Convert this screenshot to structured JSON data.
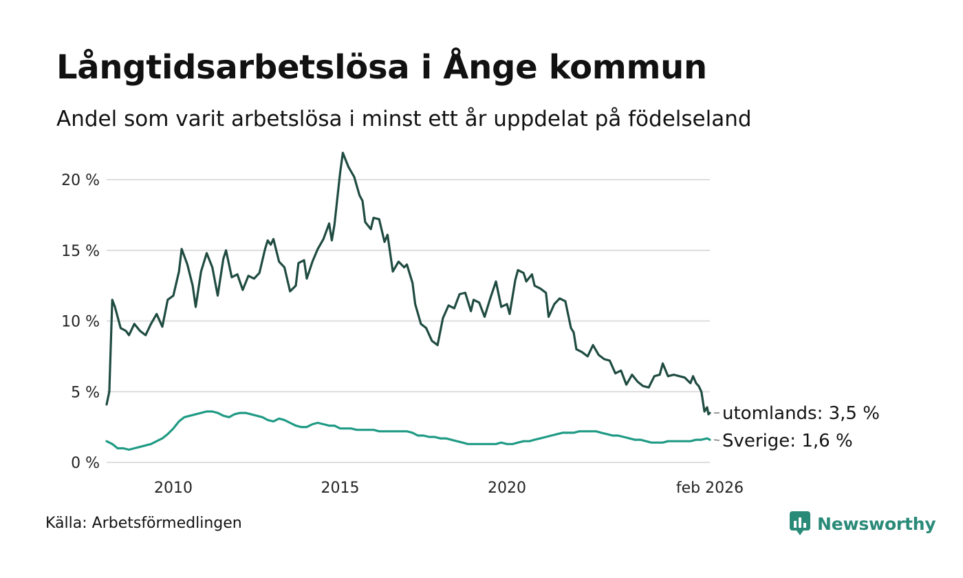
{
  "title": "Långtidsarbetslösa i Ånge kommun",
  "subtitle": "Andel som varit arbetslösa i minst ett år uppdelat på födelseland",
  "source": "Källa: Arbetsförmedlingen",
  "brand": {
    "name": "Newsworthy",
    "icon": "newsworthy-logo-icon",
    "color": "#2a8a78"
  },
  "chart_data": {
    "type": "line",
    "title": "Långtidsarbetslösa i Ånge kommun",
    "xlabel": "",
    "ylabel": "",
    "x_range": [
      2008.0,
      2026.083
    ],
    "ylim": [
      0,
      22
    ],
    "y_ticks": [
      0,
      5,
      10,
      15,
      20
    ],
    "y_tick_labels": [
      "0 %",
      "5 %",
      "10 %",
      "15 %",
      "20 %"
    ],
    "x_ticks": [
      2010,
      2015,
      2020,
      2026.083
    ],
    "x_tick_labels": [
      "2010",
      "2015",
      "2020",
      "feb 2026"
    ],
    "grid": true,
    "series": [
      {
        "name": "utomlands",
        "end_label": "utomlands: 3,5 %",
        "color": "#1f4b40",
        "points": [
          [
            2008.0,
            4.1
          ],
          [
            2008.08,
            5.0
          ],
          [
            2008.17,
            11.5
          ],
          [
            2008.25,
            11.0
          ],
          [
            2008.42,
            9.5
          ],
          [
            2008.58,
            9.3
          ],
          [
            2008.67,
            9.0
          ],
          [
            2008.83,
            9.8
          ],
          [
            2009.0,
            9.3
          ],
          [
            2009.17,
            9.0
          ],
          [
            2009.33,
            9.8
          ],
          [
            2009.5,
            10.5
          ],
          [
            2009.67,
            9.6
          ],
          [
            2009.83,
            11.5
          ],
          [
            2010.0,
            11.8
          ],
          [
            2010.17,
            13.5
          ],
          [
            2010.25,
            15.1
          ],
          [
            2010.42,
            14.0
          ],
          [
            2010.58,
            12.5
          ],
          [
            2010.67,
            11.0
          ],
          [
            2010.83,
            13.5
          ],
          [
            2011.0,
            14.8
          ],
          [
            2011.17,
            13.8
          ],
          [
            2011.33,
            11.8
          ],
          [
            2011.5,
            14.4
          ],
          [
            2011.58,
            15.0
          ],
          [
            2011.75,
            13.1
          ],
          [
            2011.92,
            13.3
          ],
          [
            2012.08,
            12.2
          ],
          [
            2012.25,
            13.2
          ],
          [
            2012.42,
            13.0
          ],
          [
            2012.58,
            13.4
          ],
          [
            2012.75,
            15.1
          ],
          [
            2012.83,
            15.7
          ],
          [
            2012.92,
            15.4
          ],
          [
            2013.0,
            15.8
          ],
          [
            2013.17,
            14.2
          ],
          [
            2013.33,
            13.8
          ],
          [
            2013.5,
            12.1
          ],
          [
            2013.67,
            12.5
          ],
          [
            2013.75,
            14.1
          ],
          [
            2013.92,
            14.3
          ],
          [
            2014.0,
            13.0
          ],
          [
            2014.17,
            14.2
          ],
          [
            2014.33,
            15.1
          ],
          [
            2014.5,
            15.8
          ],
          [
            2014.67,
            16.9
          ],
          [
            2014.75,
            15.7
          ],
          [
            2014.83,
            16.8
          ],
          [
            2015.0,
            20.5
          ],
          [
            2015.08,
            21.9
          ],
          [
            2015.25,
            20.9
          ],
          [
            2015.42,
            20.2
          ],
          [
            2015.58,
            18.9
          ],
          [
            2015.67,
            18.5
          ],
          [
            2015.75,
            17.0
          ],
          [
            2015.92,
            16.5
          ],
          [
            2016.0,
            17.3
          ],
          [
            2016.17,
            17.2
          ],
          [
            2016.33,
            15.6
          ],
          [
            2016.42,
            16.1
          ],
          [
            2016.58,
            13.5
          ],
          [
            2016.75,
            14.2
          ],
          [
            2016.92,
            13.8
          ],
          [
            2017.0,
            14.0
          ],
          [
            2017.17,
            12.7
          ],
          [
            2017.25,
            11.2
          ],
          [
            2017.42,
            9.8
          ],
          [
            2017.58,
            9.5
          ],
          [
            2017.75,
            8.6
          ],
          [
            2017.92,
            8.3
          ],
          [
            2018.08,
            10.2
          ],
          [
            2018.25,
            11.1
          ],
          [
            2018.42,
            10.9
          ],
          [
            2018.58,
            11.9
          ],
          [
            2018.75,
            12.0
          ],
          [
            2018.92,
            10.7
          ],
          [
            2019.0,
            11.5
          ],
          [
            2019.17,
            11.3
          ],
          [
            2019.33,
            10.3
          ],
          [
            2019.5,
            11.6
          ],
          [
            2019.67,
            12.8
          ],
          [
            2019.83,
            11.0
          ],
          [
            2020.0,
            11.2
          ],
          [
            2020.08,
            10.5
          ],
          [
            2020.25,
            12.9
          ],
          [
            2020.33,
            13.6
          ],
          [
            2020.5,
            13.4
          ],
          [
            2020.58,
            12.8
          ],
          [
            2020.75,
            13.3
          ],
          [
            2020.83,
            12.5
          ],
          [
            2021.0,
            12.3
          ],
          [
            2021.17,
            12.0
          ],
          [
            2021.25,
            10.3
          ],
          [
            2021.42,
            11.2
          ],
          [
            2021.58,
            11.6
          ],
          [
            2021.75,
            11.4
          ],
          [
            2021.92,
            9.5
          ],
          [
            2022.0,
            9.2
          ],
          [
            2022.08,
            8.0
          ],
          [
            2022.25,
            7.8
          ],
          [
            2022.42,
            7.5
          ],
          [
            2022.58,
            8.3
          ],
          [
            2022.75,
            7.6
          ],
          [
            2022.92,
            7.3
          ],
          [
            2023.08,
            7.2
          ],
          [
            2023.25,
            6.3
          ],
          [
            2023.42,
            6.5
          ],
          [
            2023.58,
            5.5
          ],
          [
            2023.75,
            6.2
          ],
          [
            2023.92,
            5.7
          ],
          [
            2024.08,
            5.4
          ],
          [
            2024.25,
            5.3
          ],
          [
            2024.42,
            6.1
          ],
          [
            2024.58,
            6.2
          ],
          [
            2024.67,
            7.0
          ],
          [
            2024.83,
            6.1
          ],
          [
            2025.0,
            6.2
          ],
          [
            2025.17,
            6.1
          ],
          [
            2025.33,
            6.0
          ],
          [
            2025.5,
            5.6
          ],
          [
            2025.58,
            6.1
          ],
          [
            2025.67,
            5.6
          ],
          [
            2025.75,
            5.4
          ],
          [
            2025.83,
            5.0
          ],
          [
            2025.92,
            3.6
          ],
          [
            2026.0,
            3.9
          ],
          [
            2026.04,
            3.4
          ],
          [
            2026.083,
            3.5
          ]
        ]
      },
      {
        "name": "Sverige",
        "end_label": "Sverige: 1,6 %",
        "color": "#1f9a84",
        "points": [
          [
            2008.0,
            1.5
          ],
          [
            2008.17,
            1.3
          ],
          [
            2008.33,
            1.0
          ],
          [
            2008.5,
            1.0
          ],
          [
            2008.67,
            0.9
          ],
          [
            2008.83,
            1.0
          ],
          [
            2009.0,
            1.1
          ],
          [
            2009.17,
            1.2
          ],
          [
            2009.33,
            1.3
          ],
          [
            2009.5,
            1.5
          ],
          [
            2009.67,
            1.7
          ],
          [
            2009.83,
            2.0
          ],
          [
            2010.0,
            2.4
          ],
          [
            2010.17,
            2.9
          ],
          [
            2010.33,
            3.2
          ],
          [
            2010.5,
            3.3
          ],
          [
            2010.67,
            3.4
          ],
          [
            2010.83,
            3.5
          ],
          [
            2011.0,
            3.6
          ],
          [
            2011.17,
            3.6
          ],
          [
            2011.33,
            3.5
          ],
          [
            2011.5,
            3.3
          ],
          [
            2011.67,
            3.2
          ],
          [
            2011.83,
            3.4
          ],
          [
            2012.0,
            3.5
          ],
          [
            2012.17,
            3.5
          ],
          [
            2012.33,
            3.4
          ],
          [
            2012.5,
            3.3
          ],
          [
            2012.67,
            3.2
          ],
          [
            2012.83,
            3.0
          ],
          [
            2013.0,
            2.9
          ],
          [
            2013.17,
            3.1
          ],
          [
            2013.33,
            3.0
          ],
          [
            2013.5,
            2.8
          ],
          [
            2013.67,
            2.6
          ],
          [
            2013.83,
            2.5
          ],
          [
            2014.0,
            2.5
          ],
          [
            2014.17,
            2.7
          ],
          [
            2014.33,
            2.8
          ],
          [
            2014.5,
            2.7
          ],
          [
            2014.67,
            2.6
          ],
          [
            2014.83,
            2.6
          ],
          [
            2015.0,
            2.4
          ],
          [
            2015.17,
            2.4
          ],
          [
            2015.33,
            2.4
          ],
          [
            2015.5,
            2.3
          ],
          [
            2015.67,
            2.3
          ],
          [
            2015.83,
            2.3
          ],
          [
            2016.0,
            2.3
          ],
          [
            2016.17,
            2.2
          ],
          [
            2016.33,
            2.2
          ],
          [
            2016.5,
            2.2
          ],
          [
            2016.67,
            2.2
          ],
          [
            2016.83,
            2.2
          ],
          [
            2017.0,
            2.2
          ],
          [
            2017.17,
            2.1
          ],
          [
            2017.33,
            1.9
          ],
          [
            2017.5,
            1.9
          ],
          [
            2017.67,
            1.8
          ],
          [
            2017.83,
            1.8
          ],
          [
            2018.0,
            1.7
          ],
          [
            2018.17,
            1.7
          ],
          [
            2018.33,
            1.6
          ],
          [
            2018.5,
            1.5
          ],
          [
            2018.67,
            1.4
          ],
          [
            2018.83,
            1.3
          ],
          [
            2019.0,
            1.3
          ],
          [
            2019.17,
            1.3
          ],
          [
            2019.33,
            1.3
          ],
          [
            2019.5,
            1.3
          ],
          [
            2019.67,
            1.3
          ],
          [
            2019.83,
            1.4
          ],
          [
            2020.0,
            1.3
          ],
          [
            2020.17,
            1.3
          ],
          [
            2020.33,
            1.4
          ],
          [
            2020.5,
            1.5
          ],
          [
            2020.67,
            1.5
          ],
          [
            2020.83,
            1.6
          ],
          [
            2021.0,
            1.7
          ],
          [
            2021.17,
            1.8
          ],
          [
            2021.33,
            1.9
          ],
          [
            2021.5,
            2.0
          ],
          [
            2021.67,
            2.1
          ],
          [
            2021.83,
            2.1
          ],
          [
            2022.0,
            2.1
          ],
          [
            2022.17,
            2.2
          ],
          [
            2022.33,
            2.2
          ],
          [
            2022.5,
            2.2
          ],
          [
            2022.67,
            2.2
          ],
          [
            2022.83,
            2.1
          ],
          [
            2023.0,
            2.0
          ],
          [
            2023.17,
            1.9
          ],
          [
            2023.33,
            1.9
          ],
          [
            2023.5,
            1.8
          ],
          [
            2023.67,
            1.7
          ],
          [
            2023.83,
            1.6
          ],
          [
            2024.0,
            1.6
          ],
          [
            2024.17,
            1.5
          ],
          [
            2024.33,
            1.4
          ],
          [
            2024.5,
            1.4
          ],
          [
            2024.67,
            1.4
          ],
          [
            2024.83,
            1.5
          ],
          [
            2025.0,
            1.5
          ],
          [
            2025.17,
            1.5
          ],
          [
            2025.33,
            1.5
          ],
          [
            2025.5,
            1.5
          ],
          [
            2025.67,
            1.6
          ],
          [
            2025.83,
            1.6
          ],
          [
            2026.0,
            1.7
          ],
          [
            2026.083,
            1.6
          ]
        ]
      }
    ]
  }
}
